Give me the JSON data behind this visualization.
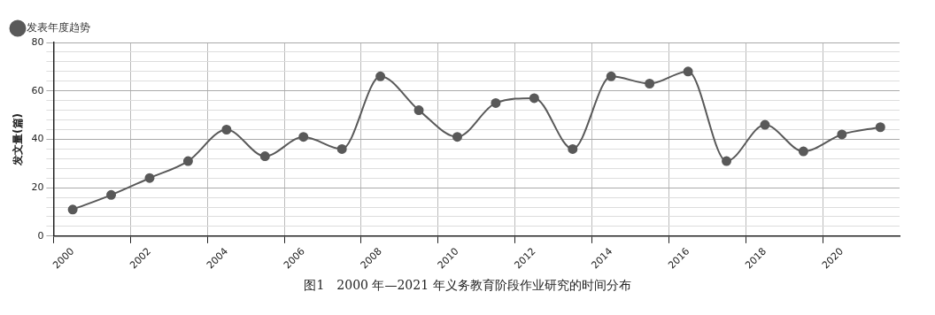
{
  "chart_data": {
    "type": "line",
    "ylabel": "发文量(篇)",
    "annotations": [
      "图1　2000 年—2021 年义务教育阶段作业研究的时间分布"
    ],
    "categories": [
      "2000",
      null,
      "2002",
      null,
      "2004",
      null,
      "2006",
      null,
      "2008",
      null,
      "2010",
      null,
      "2012",
      null,
      "2014",
      null,
      "2016",
      null,
      "2018",
      null,
      "2020",
      null
    ],
    "series": [
      {
        "name": "发表年度趋势",
        "color": "#595959",
        "values": [
          11,
          17,
          24,
          31,
          44,
          33,
          41,
          36,
          66,
          52,
          41,
          55,
          57,
          36,
          66,
          63,
          68,
          31,
          46,
          35,
          42,
          45
        ]
      }
    ],
    "ylim": [
      0,
      80
    ],
    "yticks": [
      0,
      {
        "value": 4,
        "label": null
      },
      {
        "value": 8,
        "label": null
      },
      {
        "value": 12,
        "label": null
      },
      {
        "value": 16,
        "label": null
      },
      20,
      {
        "value": 24,
        "label": null
      },
      {
        "value": 28,
        "label": null
      },
      {
        "value": 32,
        "label": null
      },
      {
        "value": 36,
        "label": null
      },
      40,
      {
        "value": 44,
        "label": null
      },
      {
        "value": 48,
        "label": null
      },
      {
        "value": 52,
        "label": null
      },
      {
        "value": 56,
        "label": null
      },
      60,
      {
        "value": 64,
        "label": null
      },
      {
        "value": 68,
        "label": null
      },
      {
        "value": 72,
        "label": null
      },
      {
        "value": 76,
        "label": null
      },
      80
    ],
    "grid": true,
    "legend": "top left",
    "marker": "circle",
    "line_style": "solid"
  }
}
